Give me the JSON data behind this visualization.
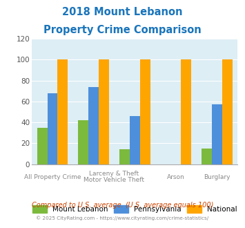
{
  "title_line1": "2018 Mount Lebanon",
  "title_line2": "Property Crime Comparison",
  "mount_lebanon": [
    35,
    42,
    14,
    0,
    15
  ],
  "pennsylvania": [
    68,
    74,
    46,
    0,
    57
  ],
  "national": [
    100,
    100,
    100,
    100,
    100
  ],
  "colors_mt_lebanon": "#7cba3d",
  "colors_pennsylvania": "#4d8fdb",
  "colors_national": "#ffa500",
  "plot_bg_color": "#ddeef5",
  "ylim": [
    0,
    120
  ],
  "yticks": [
    0,
    20,
    40,
    60,
    80,
    100,
    120
  ],
  "legend_labels": [
    "Mount Lebanon",
    "Pennsylvania",
    "National"
  ],
  "footnote1": "Compared to U.S. average. (U.S. average equals 100)",
  "footnote2": "© 2025 CityRating.com - https://www.cityrating.com/crime-statistics/",
  "title_color": "#1a75bb",
  "footnote1_color": "#cc4400",
  "footnote2_color": "#888888"
}
